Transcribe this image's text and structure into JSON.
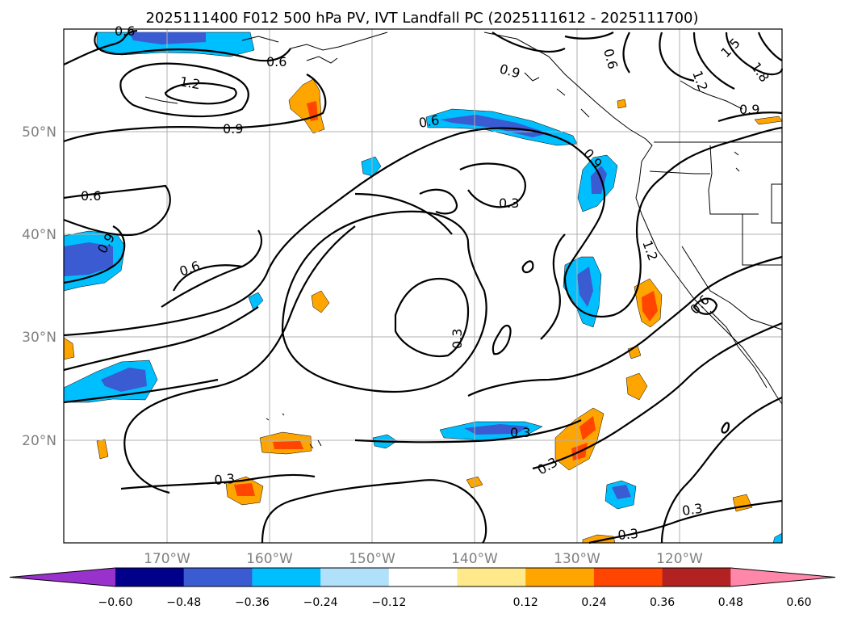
{
  "title": "2025111400 F012 500 hPa PV, IVT Landfall PC (2025111612 - 2025111700)",
  "lon_labels": [
    "170°W",
    "160°W",
    "150°W",
    "140°W",
    "130°W",
    "120°W"
  ],
  "lat_labels": [
    "50°N",
    "40°N",
    "30°N",
    "20°N"
  ],
  "colorbar": {
    "tick_labels": [
      "−0.60",
      "−0.48",
      "−0.36",
      "−0.24",
      "−0.12",
      "0.12",
      "0.24",
      "0.36",
      "0.48",
      "0.60"
    ],
    "colors": [
      "#9932cc",
      "#00008b",
      "#3a5bd1",
      "#00bfff",
      "#b0e0fa",
      "#ffffff",
      "#ffe98a",
      "#ffa500",
      "#ff4500",
      "#b22222",
      "#ff88aa"
    ]
  },
  "contour_labels": {
    "c1": "0.6",
    "c2": "0.6",
    "c3": "1.2",
    "c4": "0.9",
    "c5": "0.6",
    "c6": "0.9",
    "c7": "0.6",
    "c8": "0.9",
    "c9": "0.6",
    "c10": "0.3",
    "c11": "0.3",
    "c12": "0.3",
    "c13": "0.3",
    "c14": "0.3",
    "c15": "0.3",
    "c16": "0.3",
    "c17": "1.2",
    "c18": "0.9",
    "c19": "0.6",
    "c20": "1.5",
    "c21": "1.8",
    "c22": "1.2",
    "c23": "0.9",
    "c24": "0.9",
    "c25": "0.6"
  }
}
